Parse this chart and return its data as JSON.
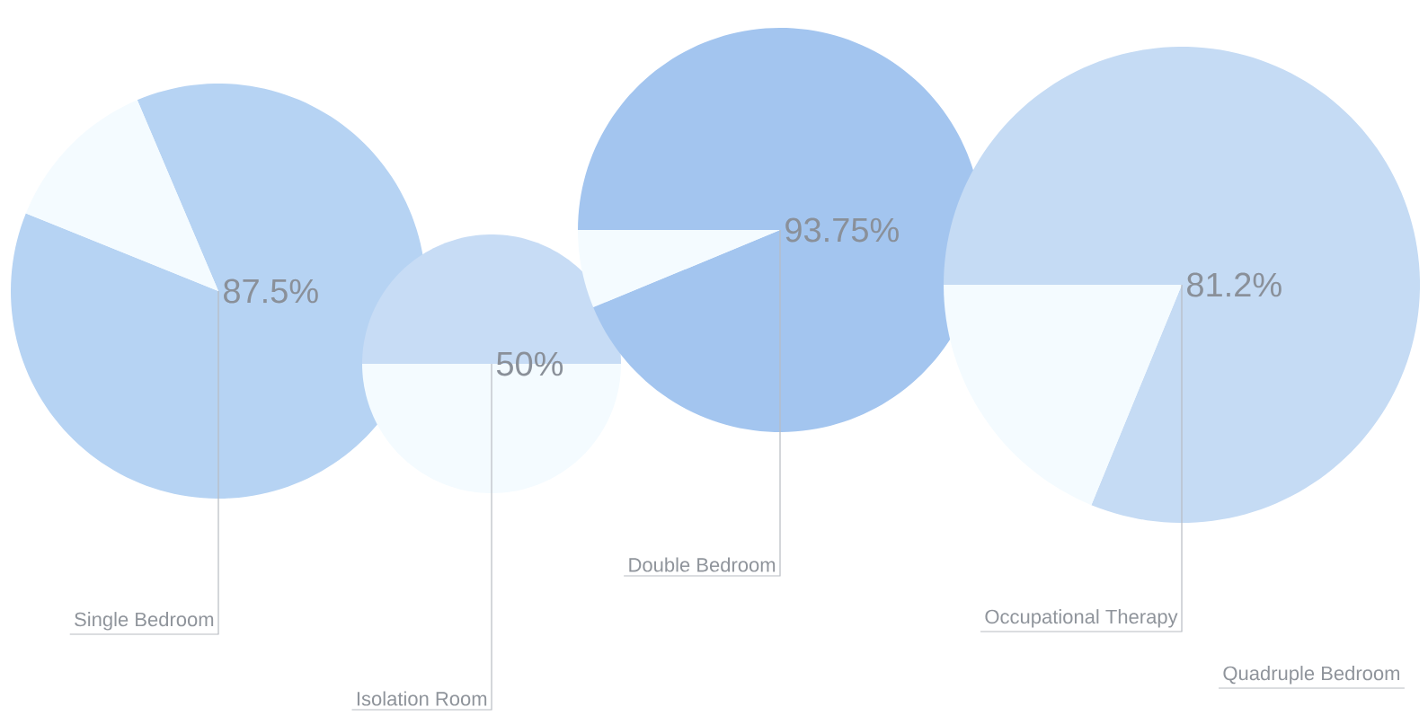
{
  "chart_data": [
    {
      "type": "pie",
      "title": "Single Bedroom",
      "categories": [
        null,
        null
      ],
      "values": [
        87.5,
        12.5
      ],
      "colors": [
        "#b6d3f3",
        "#f4fbff"
      ],
      "value_labels": [
        "87.5%",
        null
      ]
    },
    {
      "type": "pie",
      "title": "Isolation Room",
      "categories": [
        null,
        null
      ],
      "values": [
        50,
        50
      ],
      "colors": [
        "#c7dcf5",
        "#f4fbff"
      ],
      "value_labels": [
        "50%",
        null
      ]
    },
    {
      "type": "pie",
      "title": "Double Bedroom",
      "categories": [
        null,
        null
      ],
      "values": [
        93.75,
        6.25
      ],
      "colors": [
        "#a3c5ef",
        "#f4fbff"
      ],
      "value_labels": [
        "93.75%",
        null
      ]
    },
    {
      "type": "pie",
      "title": "Occupational Therapy",
      "categories": [
        null,
        null
      ],
      "values": [
        81.2,
        18.8
      ],
      "colors": [
        "#c5dbf4",
        "#f4fbff"
      ],
      "value_labels": [
        "81.2%",
        null
      ]
    },
    {
      "type": "other",
      "title": "Quadruple Bedroom"
    }
  ]
}
